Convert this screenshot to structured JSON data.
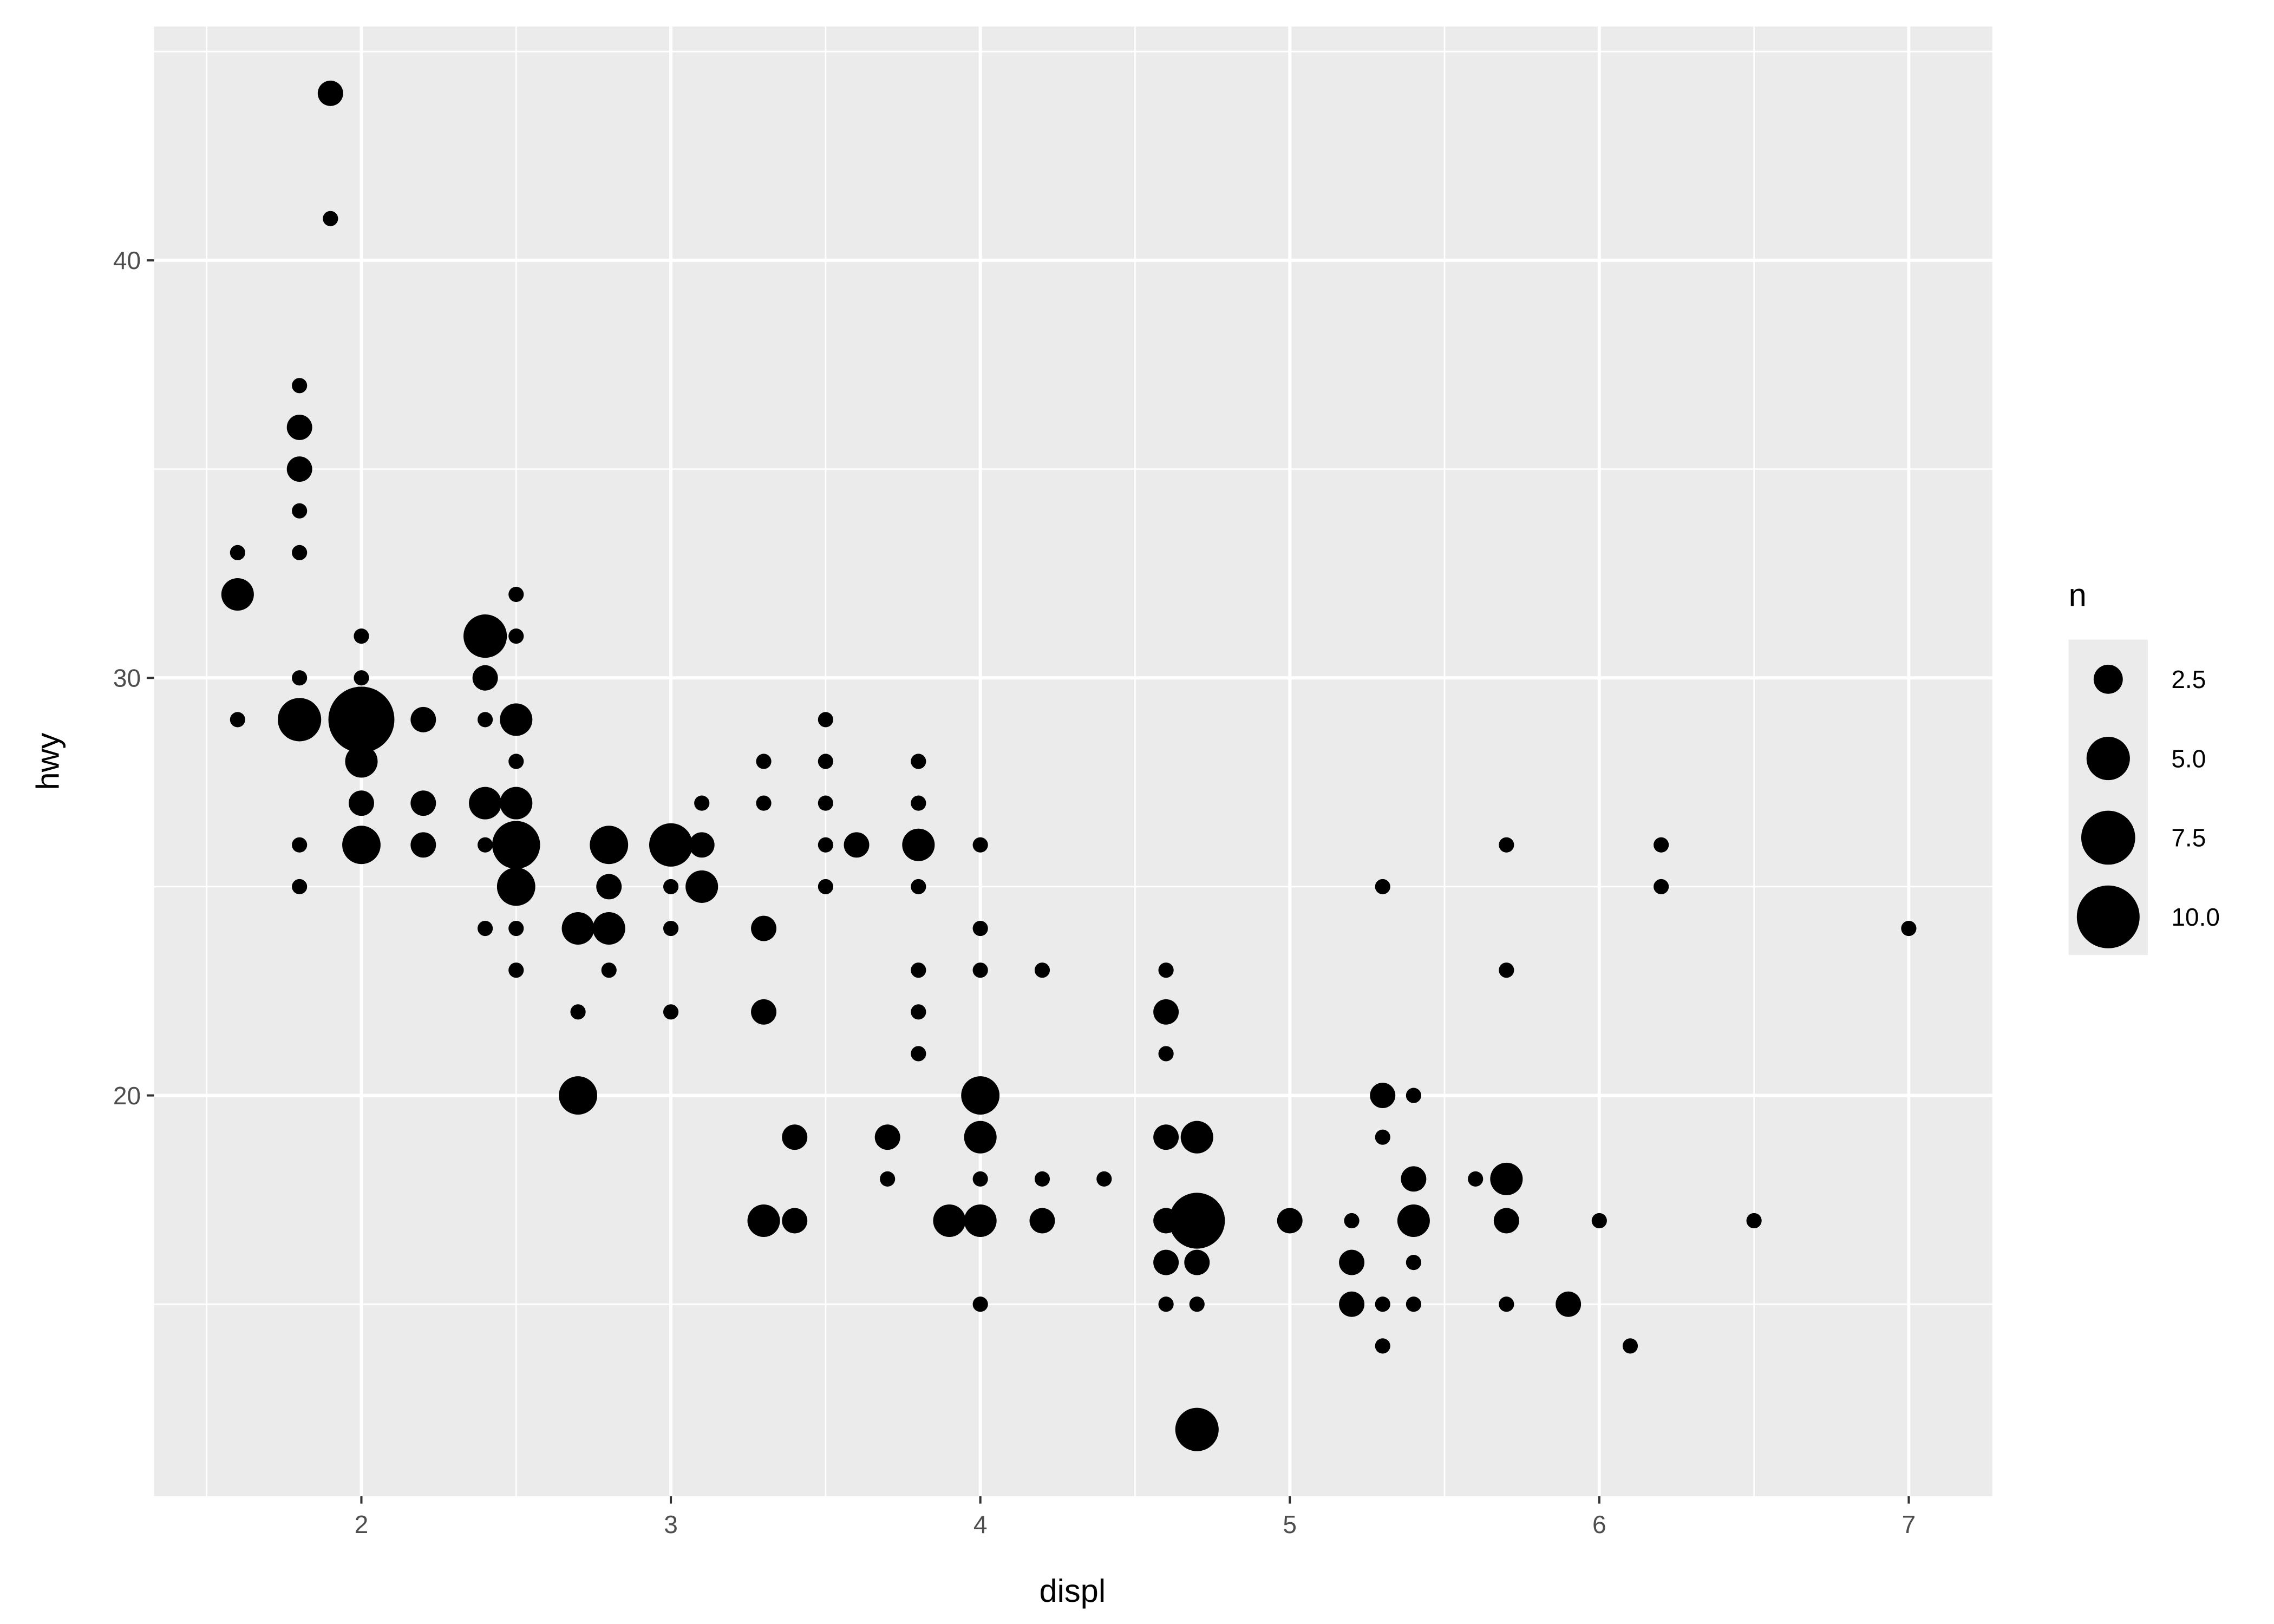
{
  "chart_data": {
    "type": "scatter",
    "xlabel": "displ",
    "ylabel": "hwy",
    "xlim": [
      1.33,
      7.27
    ],
    "ylim": [
      10.4,
      45.6
    ],
    "x_ticks": [
      2,
      3,
      4,
      5,
      6,
      7
    ],
    "x_tick_labels": [
      "2",
      "3",
      "4",
      "5",
      "6",
      "7"
    ],
    "y_ticks": [
      20,
      30,
      40
    ],
    "y_tick_labels": [
      "20",
      "30",
      "40"
    ],
    "grid": true,
    "point_color": "#000000",
    "panel_background": "#EBEBEB",
    "legend": {
      "title": "n",
      "placement": "right",
      "breaks": [
        2.5,
        5.0,
        7.5,
        10.0
      ],
      "labels": [
        "2.5",
        "5.0",
        "7.5",
        "10.0"
      ]
    },
    "size_max_n": 11,
    "points": [
      {
        "x": 1.6,
        "y": 33,
        "n": 1
      },
      {
        "x": 1.6,
        "y": 32,
        "n": 3
      },
      {
        "x": 1.6,
        "y": 29,
        "n": 1
      },
      {
        "x": 1.8,
        "y": 37,
        "n": 1
      },
      {
        "x": 1.8,
        "y": 36,
        "n": 2
      },
      {
        "x": 1.8,
        "y": 35,
        "n": 2
      },
      {
        "x": 1.8,
        "y": 34,
        "n": 1
      },
      {
        "x": 1.8,
        "y": 33,
        "n": 1
      },
      {
        "x": 1.8,
        "y": 30,
        "n": 1
      },
      {
        "x": 1.8,
        "y": 29,
        "n": 5
      },
      {
        "x": 1.8,
        "y": 26,
        "n": 1
      },
      {
        "x": 1.8,
        "y": 25,
        "n": 1
      },
      {
        "x": 1.9,
        "y": 44,
        "n": 2
      },
      {
        "x": 1.9,
        "y": 41,
        "n": 1
      },
      {
        "x": 2.0,
        "y": 31,
        "n": 1
      },
      {
        "x": 2.0,
        "y": 30,
        "n": 1
      },
      {
        "x": 2.0,
        "y": 29,
        "n": 11
      },
      {
        "x": 2.0,
        "y": 28,
        "n": 3
      },
      {
        "x": 2.0,
        "y": 27,
        "n": 2
      },
      {
        "x": 2.0,
        "y": 26,
        "n": 4
      },
      {
        "x": 2.2,
        "y": 29,
        "n": 2
      },
      {
        "x": 2.2,
        "y": 27,
        "n": 2
      },
      {
        "x": 2.2,
        "y": 26,
        "n": 2
      },
      {
        "x": 2.4,
        "y": 31,
        "n": 5
      },
      {
        "x": 2.4,
        "y": 30,
        "n": 2
      },
      {
        "x": 2.4,
        "y": 29,
        "n": 1
      },
      {
        "x": 2.4,
        "y": 27,
        "n": 3
      },
      {
        "x": 2.4,
        "y": 26,
        "n": 1
      },
      {
        "x": 2.4,
        "y": 24,
        "n": 1
      },
      {
        "x": 2.5,
        "y": 32,
        "n": 1
      },
      {
        "x": 2.5,
        "y": 31,
        "n": 1
      },
      {
        "x": 2.5,
        "y": 29,
        "n": 3
      },
      {
        "x": 2.5,
        "y": 28,
        "n": 1
      },
      {
        "x": 2.5,
        "y": 27,
        "n": 3
      },
      {
        "x": 2.5,
        "y": 26,
        "n": 6
      },
      {
        "x": 2.5,
        "y": 25,
        "n": 4
      },
      {
        "x": 2.5,
        "y": 24,
        "n": 1
      },
      {
        "x": 2.5,
        "y": 23,
        "n": 1
      },
      {
        "x": 2.7,
        "y": 24,
        "n": 3
      },
      {
        "x": 2.7,
        "y": 22,
        "n": 1
      },
      {
        "x": 2.7,
        "y": 20,
        "n": 4
      },
      {
        "x": 2.8,
        "y": 26,
        "n": 4
      },
      {
        "x": 2.8,
        "y": 25,
        "n": 2
      },
      {
        "x": 2.8,
        "y": 24,
        "n": 3
      },
      {
        "x": 2.8,
        "y": 23,
        "n": 1
      },
      {
        "x": 3.0,
        "y": 26,
        "n": 5
      },
      {
        "x": 3.0,
        "y": 25,
        "n": 1
      },
      {
        "x": 3.0,
        "y": 24,
        "n": 1
      },
      {
        "x": 3.0,
        "y": 22,
        "n": 1
      },
      {
        "x": 3.1,
        "y": 27,
        "n": 1
      },
      {
        "x": 3.1,
        "y": 26,
        "n": 2
      },
      {
        "x": 3.1,
        "y": 25,
        "n": 3
      },
      {
        "x": 3.3,
        "y": 28,
        "n": 1
      },
      {
        "x": 3.3,
        "y": 27,
        "n": 1
      },
      {
        "x": 3.3,
        "y": 24,
        "n": 2
      },
      {
        "x": 3.3,
        "y": 22,
        "n": 2
      },
      {
        "x": 3.3,
        "y": 17,
        "n": 3
      },
      {
        "x": 3.4,
        "y": 19,
        "n": 2
      },
      {
        "x": 3.4,
        "y": 17,
        "n": 2
      },
      {
        "x": 3.5,
        "y": 29,
        "n": 1
      },
      {
        "x": 3.5,
        "y": 28,
        "n": 1
      },
      {
        "x": 3.5,
        "y": 27,
        "n": 1
      },
      {
        "x": 3.5,
        "y": 26,
        "n": 1
      },
      {
        "x": 3.5,
        "y": 25,
        "n": 1
      },
      {
        "x": 3.6,
        "y": 26,
        "n": 2
      },
      {
        "x": 3.7,
        "y": 19,
        "n": 2
      },
      {
        "x": 3.7,
        "y": 18,
        "n": 1
      },
      {
        "x": 3.8,
        "y": 28,
        "n": 1
      },
      {
        "x": 3.8,
        "y": 27,
        "n": 1
      },
      {
        "x": 3.8,
        "y": 26,
        "n": 3
      },
      {
        "x": 3.8,
        "y": 25,
        "n": 1
      },
      {
        "x": 3.8,
        "y": 23,
        "n": 1
      },
      {
        "x": 3.8,
        "y": 22,
        "n": 1
      },
      {
        "x": 3.8,
        "y": 21,
        "n": 1
      },
      {
        "x": 3.9,
        "y": 17,
        "n": 3
      },
      {
        "x": 4.0,
        "y": 26,
        "n": 1
      },
      {
        "x": 4.0,
        "y": 24,
        "n": 1
      },
      {
        "x": 4.0,
        "y": 23,
        "n": 1
      },
      {
        "x": 4.0,
        "y": 20,
        "n": 4
      },
      {
        "x": 4.0,
        "y": 19,
        "n": 3
      },
      {
        "x": 4.0,
        "y": 18,
        "n": 1
      },
      {
        "x": 4.0,
        "y": 17,
        "n": 3
      },
      {
        "x": 4.0,
        "y": 15,
        "n": 1
      },
      {
        "x": 4.2,
        "y": 23,
        "n": 1
      },
      {
        "x": 4.2,
        "y": 18,
        "n": 1
      },
      {
        "x": 4.2,
        "y": 17,
        "n": 2
      },
      {
        "x": 4.4,
        "y": 18,
        "n": 1
      },
      {
        "x": 4.6,
        "y": 23,
        "n": 1
      },
      {
        "x": 4.6,
        "y": 22,
        "n": 2
      },
      {
        "x": 4.6,
        "y": 21,
        "n": 1
      },
      {
        "x": 4.6,
        "y": 19,
        "n": 2
      },
      {
        "x": 4.6,
        "y": 17,
        "n": 2
      },
      {
        "x": 4.6,
        "y": 16,
        "n": 2
      },
      {
        "x": 4.6,
        "y": 15,
        "n": 1
      },
      {
        "x": 4.7,
        "y": 19,
        "n": 3
      },
      {
        "x": 4.7,
        "y": 17,
        "n": 8
      },
      {
        "x": 4.7,
        "y": 16,
        "n": 2
      },
      {
        "x": 4.7,
        "y": 15,
        "n": 1
      },
      {
        "x": 4.7,
        "y": 12,
        "n": 5
      },
      {
        "x": 5.0,
        "y": 17,
        "n": 2
      },
      {
        "x": 5.2,
        "y": 17,
        "n": 1
      },
      {
        "x": 5.2,
        "y": 16,
        "n": 2
      },
      {
        "x": 5.2,
        "y": 15,
        "n": 2
      },
      {
        "x": 5.3,
        "y": 25,
        "n": 1
      },
      {
        "x": 5.3,
        "y": 20,
        "n": 2
      },
      {
        "x": 5.3,
        "y": 19,
        "n": 1
      },
      {
        "x": 5.3,
        "y": 15,
        "n": 1
      },
      {
        "x": 5.3,
        "y": 14,
        "n": 1
      },
      {
        "x": 5.4,
        "y": 20,
        "n": 1
      },
      {
        "x": 5.4,
        "y": 18,
        "n": 2
      },
      {
        "x": 5.4,
        "y": 17,
        "n": 3
      },
      {
        "x": 5.4,
        "y": 16,
        "n": 1
      },
      {
        "x": 5.4,
        "y": 15,
        "n": 1
      },
      {
        "x": 5.6,
        "y": 18,
        "n": 1
      },
      {
        "x": 5.7,
        "y": 26,
        "n": 1
      },
      {
        "x": 5.7,
        "y": 23,
        "n": 1
      },
      {
        "x": 5.7,
        "y": 18,
        "n": 3
      },
      {
        "x": 5.7,
        "y": 17,
        "n": 2
      },
      {
        "x": 5.7,
        "y": 15,
        "n": 1
      },
      {
        "x": 5.9,
        "y": 15,
        "n": 2
      },
      {
        "x": 6.0,
        "y": 17,
        "n": 1
      },
      {
        "x": 6.1,
        "y": 14,
        "n": 1
      },
      {
        "x": 6.2,
        "y": 26,
        "n": 1
      },
      {
        "x": 6.2,
        "y": 25,
        "n": 1
      },
      {
        "x": 6.5,
        "y": 17,
        "n": 1
      },
      {
        "x": 7.0,
        "y": 24,
        "n": 1
      }
    ]
  }
}
